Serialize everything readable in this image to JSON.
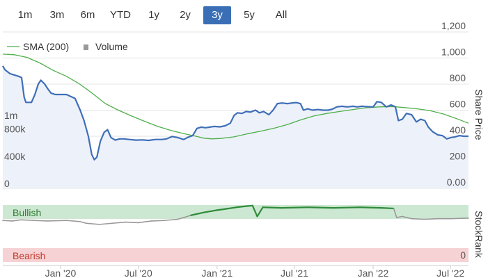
{
  "range_selector": {
    "buttons": [
      "1m",
      "3m",
      "6m",
      "YTD",
      "1y",
      "2y",
      "3y",
      "5y",
      "All"
    ],
    "selected": "3y"
  },
  "colors": {
    "price": "#3f6fb8",
    "sma": "#4daf4a",
    "stockrank_bullish": "#2e8b3a",
    "stockrank_neutral": "#999999",
    "volume": "#cccccc",
    "bullish_band": "#cde8d2",
    "bearish_band": "#f6d2d4",
    "price_fill": "#edf1f9"
  },
  "chart_data": [
    {
      "type": "line",
      "legend": [
        "SMA (200)",
        "Volume"
      ],
      "right_axis": {
        "label": "Share Price",
        "ticks": [
          "0.00",
          "200",
          "400",
          "600",
          "800",
          "1,000",
          "1,200"
        ],
        "ylim": [
          0,
          1200
        ]
      },
      "left_axis": {
        "ticks": [
          "0",
          "400k",
          "800k",
          "1m"
        ]
      },
      "x_ticks": [
        "Jan '20",
        "Jul '20",
        "Jan '21",
        "Jul '21",
        "Jan '22",
        "Jul '22"
      ],
      "x_tick_dates": [
        "2020-01-01",
        "2020-07-01",
        "2021-01-01",
        "2021-07-01",
        "2022-01-01",
        "2022-07-01"
      ],
      "x_range": [
        "2019-08-19",
        "2022-08-12"
      ],
      "series": [
        {
          "name": "Share Price",
          "points": [
            [
              "2019-08-19",
              940
            ],
            [
              "2019-08-24",
              910
            ],
            [
              "2019-09-05",
              880
            ],
            [
              "2019-09-15",
              870
            ],
            [
              "2019-09-25",
              860
            ],
            [
              "2019-10-02",
              850
            ],
            [
              "2019-10-08",
              700
            ],
            [
              "2019-10-12",
              660
            ],
            [
              "2019-10-25",
              660
            ],
            [
              "2019-11-02",
              720
            ],
            [
              "2019-11-10",
              800
            ],
            [
              "2019-11-16",
              830
            ],
            [
              "2019-11-25",
              800
            ],
            [
              "2019-12-03",
              760
            ],
            [
              "2019-12-10",
              730
            ],
            [
              "2019-12-20",
              720
            ],
            [
              "2020-01-15",
              720
            ],
            [
              "2020-02-04",
              690
            ],
            [
              "2020-02-16",
              600
            ],
            [
              "2020-02-25",
              520
            ],
            [
              "2020-03-06",
              400
            ],
            [
              "2020-03-14",
              260
            ],
            [
              "2020-03-20",
              220
            ],
            [
              "2020-03-26",
              240
            ],
            [
              "2020-04-03",
              360
            ],
            [
              "2020-04-12",
              430
            ],
            [
              "2020-04-20",
              450
            ],
            [
              "2020-04-28",
              390
            ],
            [
              "2020-05-08",
              370
            ],
            [
              "2020-05-18",
              380
            ],
            [
              "2020-05-28",
              380
            ],
            [
              "2020-06-10",
              375
            ],
            [
              "2020-06-25",
              370
            ],
            [
              "2020-07-10",
              372
            ],
            [
              "2020-07-25",
              368
            ],
            [
              "2020-08-10",
              375
            ],
            [
              "2020-08-25",
              375
            ],
            [
              "2020-09-05",
              380
            ],
            [
              "2020-09-18",
              398
            ],
            [
              "2020-10-01",
              390
            ],
            [
              "2020-10-15",
              375
            ],
            [
              "2020-10-25",
              392
            ],
            [
              "2020-11-05",
              405
            ],
            [
              "2020-11-15",
              460
            ],
            [
              "2020-11-25",
              470
            ],
            [
              "2020-12-05",
              465
            ],
            [
              "2020-12-15",
              470
            ],
            [
              "2020-12-25",
              475
            ],
            [
              "2021-01-08",
              472
            ],
            [
              "2021-01-20",
              480
            ],
            [
              "2021-02-01",
              500
            ],
            [
              "2021-02-10",
              560
            ],
            [
              "2021-02-18",
              580
            ],
            [
              "2021-02-28",
              575
            ],
            [
              "2021-03-10",
              590
            ],
            [
              "2021-03-20",
              585
            ],
            [
              "2021-04-01",
              600
            ],
            [
              "2021-04-10",
              580
            ],
            [
              "2021-04-20",
              590
            ],
            [
              "2021-05-02",
              565
            ],
            [
              "2021-05-12",
              600
            ],
            [
              "2021-05-22",
              650
            ],
            [
              "2021-06-02",
              655
            ],
            [
              "2021-06-15",
              650
            ],
            [
              "2021-06-25",
              655
            ],
            [
              "2021-07-05",
              658
            ],
            [
              "2021-07-15",
              650
            ],
            [
              "2021-07-22",
              600
            ],
            [
              "2021-08-01",
              610
            ],
            [
              "2021-08-12",
              600
            ],
            [
              "2021-08-25",
              605
            ],
            [
              "2021-09-05",
              600
            ],
            [
              "2021-09-18",
              600
            ],
            [
              "2021-09-28",
              608
            ],
            [
              "2021-10-08",
              625
            ],
            [
              "2021-10-20",
              630
            ],
            [
              "2021-11-01",
              625
            ],
            [
              "2021-11-15",
              630
            ],
            [
              "2021-11-25",
              625
            ],
            [
              "2021-12-05",
              630
            ],
            [
              "2021-12-15",
              628
            ],
            [
              "2022-01-01",
              625
            ],
            [
              "2022-01-10",
              665
            ],
            [
              "2022-01-20",
              660
            ],
            [
              "2022-02-01",
              625
            ],
            [
              "2022-02-12",
              640
            ],
            [
              "2022-02-22",
              625
            ],
            [
              "2022-03-01",
              520
            ],
            [
              "2022-03-10",
              530
            ],
            [
              "2022-03-20",
              575
            ],
            [
              "2022-04-01",
              565
            ],
            [
              "2022-04-12",
              510
            ],
            [
              "2022-04-22",
              530
            ],
            [
              "2022-05-02",
              520
            ],
            [
              "2022-05-10",
              470
            ],
            [
              "2022-05-20",
              435
            ],
            [
              "2022-06-01",
              410
            ],
            [
              "2022-06-12",
              405
            ],
            [
              "2022-06-22",
              380
            ],
            [
              "2022-07-02",
              390
            ],
            [
              "2022-07-12",
              395
            ],
            [
              "2022-07-22",
              405
            ],
            [
              "2022-08-01",
              400
            ],
            [
              "2022-08-12",
              400
            ]
          ]
        },
        {
          "name": "SMA (200)",
          "points": [
            [
              "2019-08-19",
              1030
            ],
            [
              "2019-09-15",
              1025
            ],
            [
              "2019-10-15",
              1005
            ],
            [
              "2019-11-15",
              960
            ],
            [
              "2019-12-15",
              905
            ],
            [
              "2020-01-15",
              860
            ],
            [
              "2020-02-15",
              800
            ],
            [
              "2020-03-15",
              730
            ],
            [
              "2020-04-15",
              650
            ],
            [
              "2020-05-15",
              600
            ],
            [
              "2020-06-15",
              555
            ],
            [
              "2020-07-15",
              515
            ],
            [
              "2020-08-15",
              475
            ],
            [
              "2020-09-15",
              445
            ],
            [
              "2020-10-15",
              420
            ],
            [
              "2020-11-15",
              398
            ],
            [
              "2020-12-01",
              385
            ],
            [
              "2020-12-20",
              380
            ],
            [
              "2021-01-10",
              383
            ],
            [
              "2021-02-10",
              395
            ],
            [
              "2021-03-15",
              420
            ],
            [
              "2021-04-15",
              440
            ],
            [
              "2021-05-15",
              462
            ],
            [
              "2021-06-15",
              490
            ],
            [
              "2021-07-15",
              525
            ],
            [
              "2021-08-15",
              555
            ],
            [
              "2021-09-15",
              575
            ],
            [
              "2021-10-15",
              590
            ],
            [
              "2021-11-15",
              605
            ],
            [
              "2021-12-15",
              618
            ],
            [
              "2022-01-15",
              625
            ],
            [
              "2022-02-15",
              628
            ],
            [
              "2022-03-15",
              620
            ],
            [
              "2022-04-15",
              610
            ],
            [
              "2022-05-15",
              595
            ],
            [
              "2022-06-15",
              570
            ],
            [
              "2022-07-15",
              535
            ],
            [
              "2022-08-12",
              500
            ]
          ]
        },
        {
          "name": "Volume",
          "type": "bar",
          "spikes": [
            [
              "2020-03-20",
              60000
            ],
            [
              "2020-06-20",
              120000
            ],
            [
              "2020-06-23",
              700000
            ],
            [
              "2020-07-20",
              90000
            ],
            [
              "2020-07-30",
              130000
            ],
            [
              "2020-08-10",
              60000
            ],
            [
              "2020-08-25",
              260000
            ],
            [
              "2020-10-15",
              50000
            ],
            [
              "2021-04-15",
              40000
            ],
            [
              "2021-05-20",
              80000
            ],
            [
              "2021-10-01",
              260000
            ],
            [
              "2022-07-25",
              50000
            ]
          ]
        }
      ]
    },
    {
      "type": "line",
      "right_axis": {
        "label": "StockRank",
        "ticks": [
          "0"
        ]
      },
      "bands": [
        "Bullish",
        "Bearish"
      ],
      "series": [
        {
          "name": "StockRank",
          "points": [
            [
              "2019-08-19",
              73
            ],
            [
              "2019-09-10",
              72
            ],
            [
              "2019-10-01",
              74
            ],
            [
              "2019-11-01",
              73
            ],
            [
              "2019-12-01",
              72
            ],
            [
              "2020-01-15",
              73
            ],
            [
              "2020-02-15",
              71
            ],
            [
              "2020-03-01",
              68
            ],
            [
              "2020-04-01",
              66
            ],
            [
              "2020-05-01",
              68
            ],
            [
              "2020-06-01",
              70
            ],
            [
              "2020-07-01",
              69
            ],
            [
              "2020-08-01",
              72
            ],
            [
              "2020-09-01",
              73
            ],
            [
              "2020-10-01",
              75
            ],
            [
              "2020-10-15",
              78
            ],
            [
              "2020-11-01",
              82
            ],
            [
              "2020-12-01",
              87
            ],
            [
              "2021-01-01",
              91
            ],
            [
              "2021-01-20",
              93
            ],
            [
              "2021-02-15",
              96
            ],
            [
              "2021-03-10",
              98
            ],
            [
              "2021-03-25",
              99
            ],
            [
              "2021-04-05",
              80
            ],
            [
              "2021-04-18",
              96
            ],
            [
              "2021-06-01",
              95
            ],
            [
              "2021-08-01",
              96
            ],
            [
              "2021-10-01",
              95
            ],
            [
              "2021-12-01",
              96
            ],
            [
              "2022-01-20",
              95
            ],
            [
              "2022-02-18",
              94
            ],
            [
              "2022-02-25",
              78
            ],
            [
              "2022-03-10",
              80
            ],
            [
              "2022-04-01",
              76
            ],
            [
              "2022-05-01",
              75
            ],
            [
              "2022-06-01",
              76
            ],
            [
              "2022-07-01",
              76
            ],
            [
              "2022-08-12",
              77
            ]
          ]
        }
      ]
    }
  ]
}
